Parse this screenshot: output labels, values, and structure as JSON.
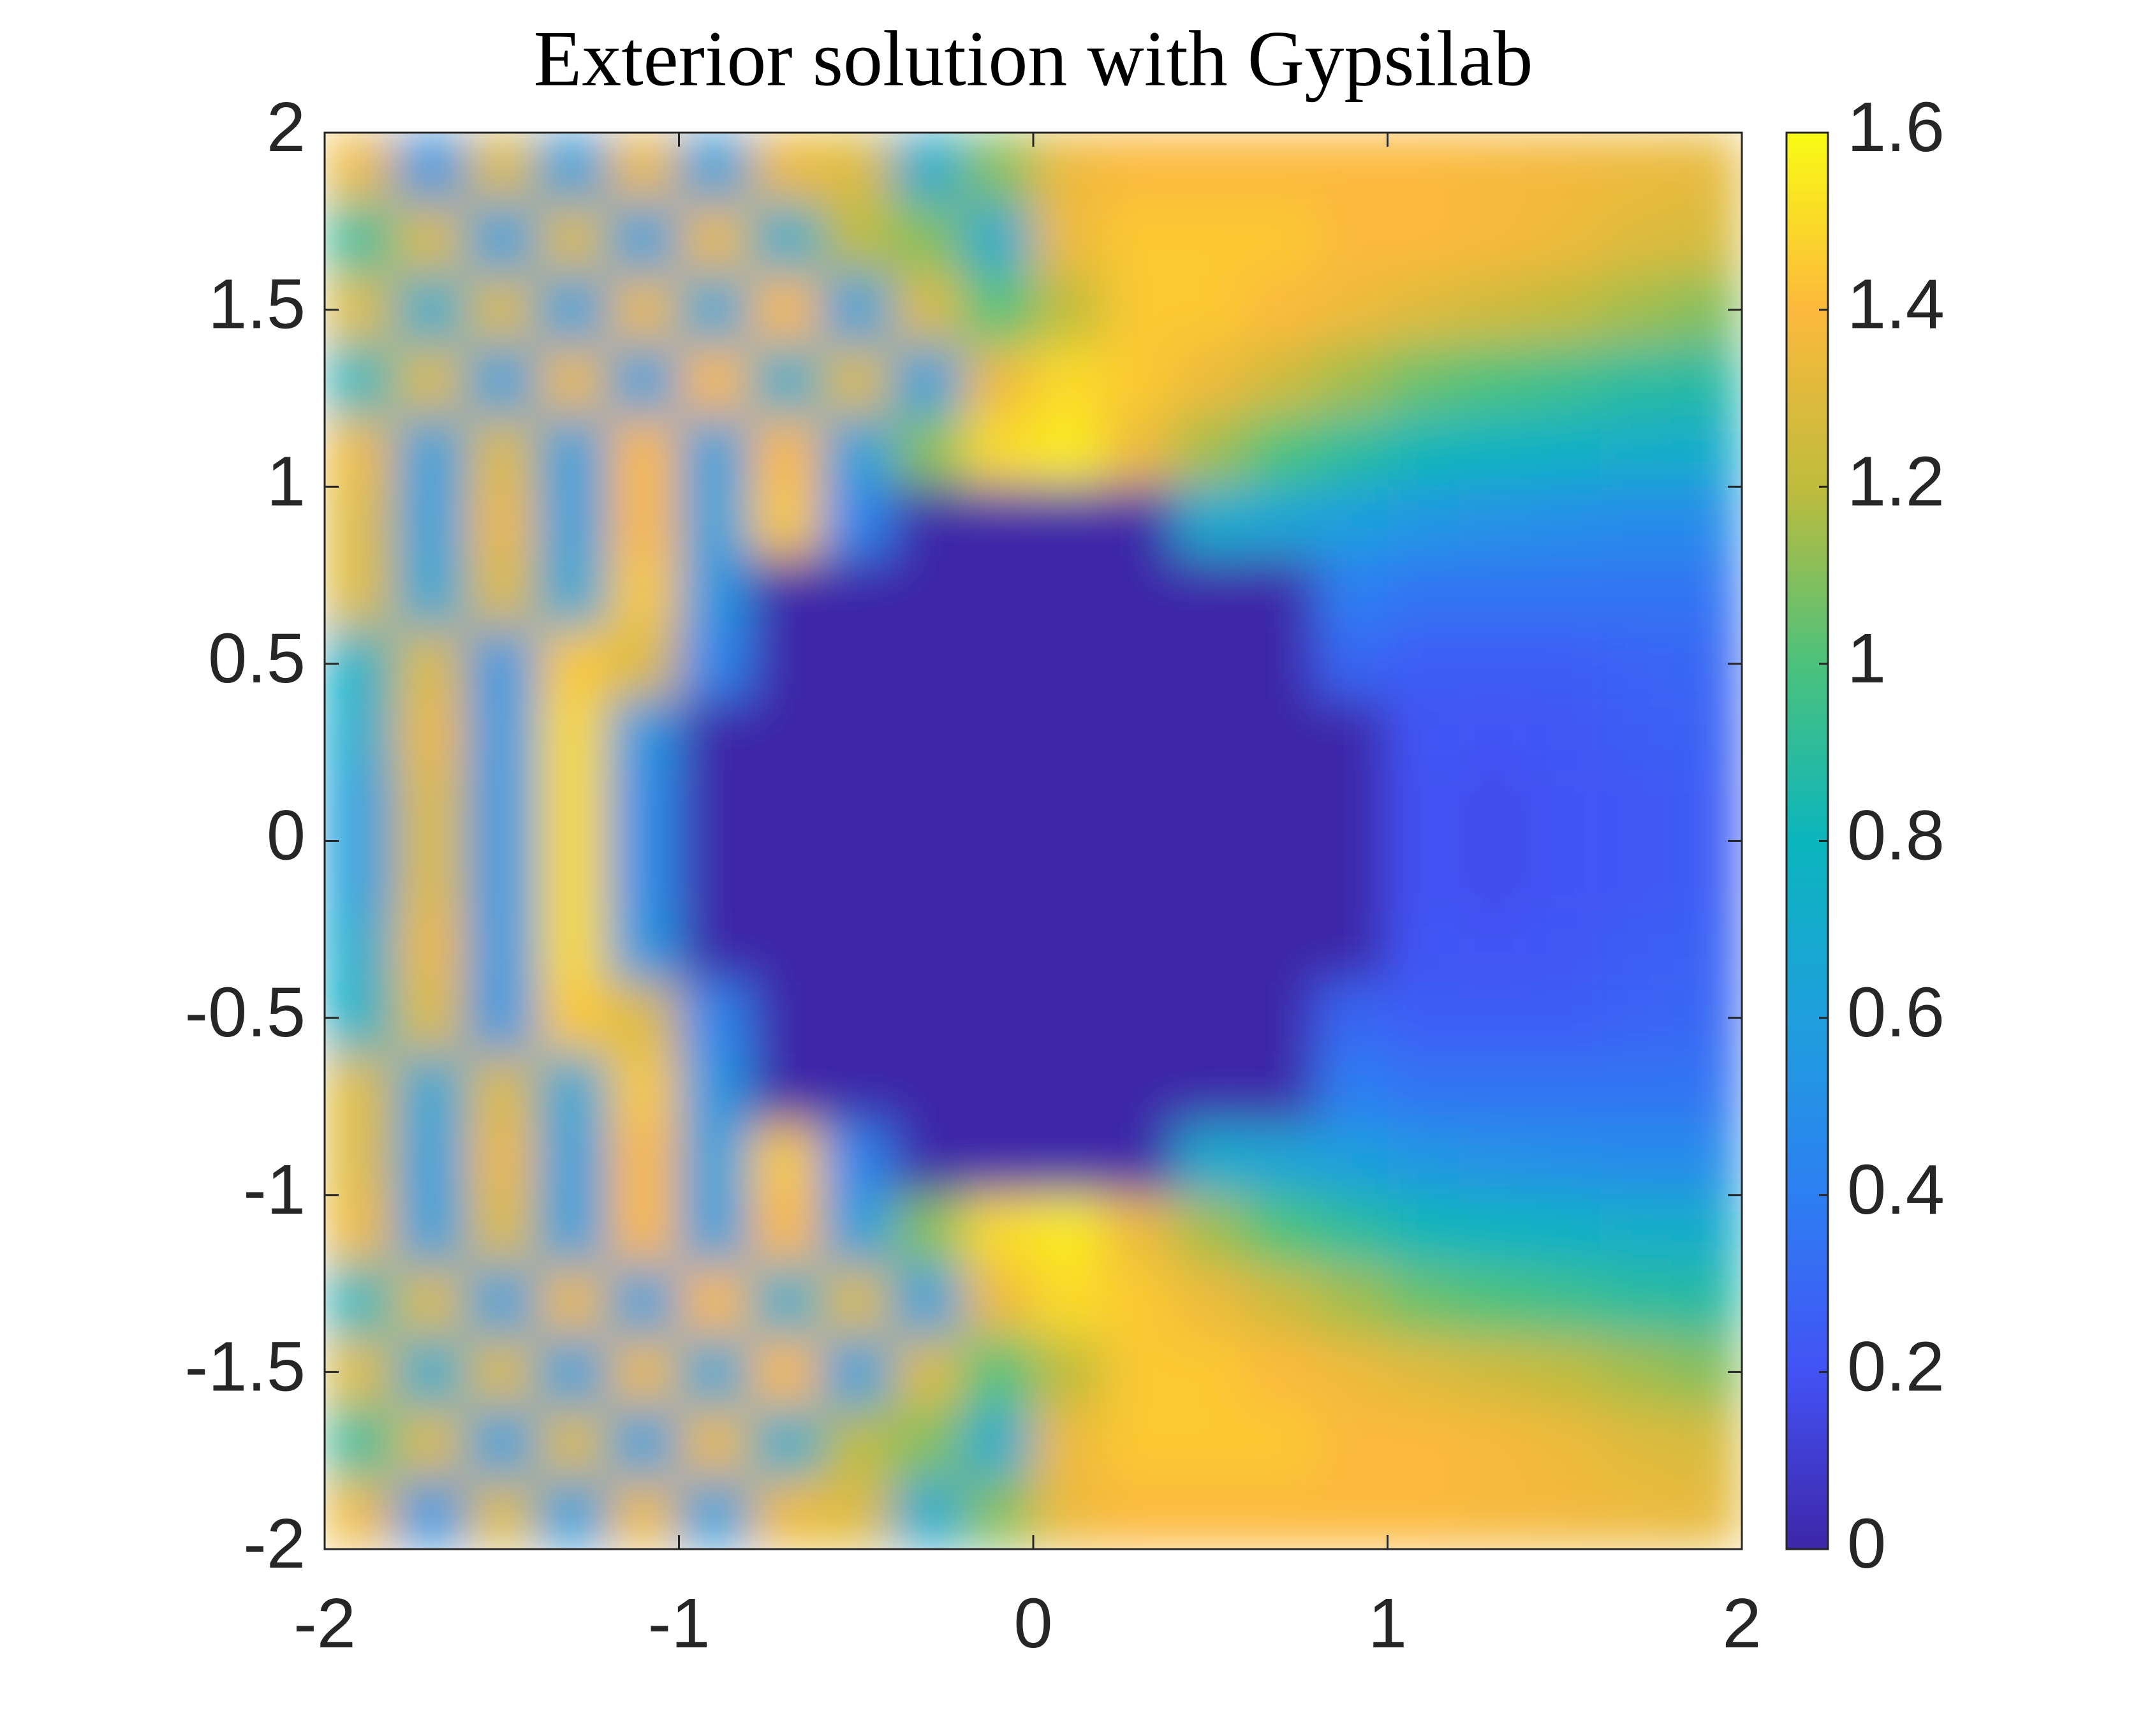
{
  "chart_data": {
    "type": "heatmap",
    "title": "Exterior solution with Gypsilab",
    "x": [
      -1.9,
      -1.7,
      -1.5,
      -1.3,
      -1.1,
      -0.9,
      -0.7,
      -0.5,
      -0.3,
      -0.1,
      0.1,
      0.3,
      0.5,
      0.7,
      0.9,
      1.1,
      1.3,
      1.5,
      1.7,
      1.9
    ],
    "y": [
      1.9,
      1.7,
      1.5,
      1.3,
      1.1,
      0.9,
      0.7,
      0.5,
      0.3,
      0.1,
      -0.1,
      -0.3,
      -0.5,
      -0.7,
      -0.9,
      -1.1,
      -1.3,
      -1.5,
      -1.7,
      -1.9
    ],
    "z": [
      [
        1.35,
        0.55,
        1.3,
        0.6,
        1.35,
        0.6,
        1.35,
        1.3,
        0.7,
        1.1,
        1.35,
        1.4,
        1.4,
        1.4,
        1.4,
        1.4,
        1.38,
        1.37,
        1.35,
        1.33
      ],
      [
        0.9,
        1.3,
        0.6,
        1.3,
        0.6,
        1.35,
        0.7,
        1.2,
        1.1,
        0.7,
        1.35,
        1.45,
        1.45,
        1.45,
        1.4,
        1.4,
        1.38,
        1.35,
        1.3,
        1.28
      ],
      [
        1.3,
        0.7,
        1.3,
        0.6,
        1.35,
        0.65,
        1.4,
        0.6,
        1.3,
        1.0,
        1.2,
        1.45,
        1.45,
        1.4,
        1.35,
        1.3,
        1.25,
        1.2,
        1.15,
        1.1
      ],
      [
        0.8,
        1.3,
        0.6,
        1.35,
        0.6,
        1.4,
        0.7,
        1.3,
        0.6,
        1.35,
        1.5,
        1.45,
        1.35,
        1.25,
        1.15,
        1.05,
        1.0,
        0.95,
        0.9,
        0.88
      ],
      [
        1.35,
        0.6,
        1.3,
        0.6,
        1.4,
        0.6,
        1.4,
        0.6,
        1.1,
        1.5,
        1.55,
        1.35,
        1.15,
        1.0,
        0.9,
        0.82,
        0.78,
        0.75,
        0.73,
        0.72
      ],
      [
        1.3,
        0.6,
        1.35,
        0.6,
        1.4,
        0.6,
        1.45,
        0.45,
        0,
        0,
        0,
        0,
        0.7,
        0.65,
        0.6,
        0.55,
        0.52,
        0.5,
        0.48,
        0.48
      ],
      [
        1.3,
        0.65,
        1.3,
        0.65,
        1.45,
        0.55,
        0,
        0,
        0,
        0,
        0,
        0,
        0,
        0,
        0.4,
        0.35,
        0.35,
        0.35,
        0.35,
        0.35
      ],
      [
        0.75,
        1.3,
        0.55,
        1.45,
        1.3,
        0.45,
        0,
        0,
        0,
        0,
        0,
        0,
        0,
        0,
        0.3,
        0.25,
        0.25,
        0.25,
        0.28,
        0.3
      ],
      [
        0.7,
        1.35,
        0.55,
        1.5,
        0.55,
        0,
        0,
        0,
        0,
        0,
        0,
        0,
        0,
        0,
        0,
        0.22,
        0.2,
        0.22,
        0.25,
        0.27
      ],
      [
        0.6,
        1.3,
        0.55,
        1.5,
        0.5,
        0,
        0,
        0,
        0,
        0,
        0,
        0,
        0,
        0,
        0,
        0.2,
        0.18,
        0.2,
        0.22,
        0.25
      ],
      [
        0.6,
        1.3,
        0.55,
        1.5,
        0.5,
        0,
        0,
        0,
        0,
        0,
        0,
        0,
        0,
        0,
        0,
        0.2,
        0.18,
        0.2,
        0.22,
        0.25
      ],
      [
        0.7,
        1.35,
        0.55,
        1.5,
        0.55,
        0,
        0,
        0,
        0,
        0,
        0,
        0,
        0,
        0,
        0,
        0.22,
        0.2,
        0.22,
        0.25,
        0.27
      ],
      [
        0.75,
        1.3,
        0.55,
        1.45,
        1.3,
        0.45,
        0,
        0,
        0,
        0,
        0,
        0,
        0,
        0,
        0.3,
        0.25,
        0.25,
        0.25,
        0.28,
        0.3
      ],
      [
        1.3,
        0.65,
        1.3,
        0.65,
        1.45,
        0.55,
        0,
        0,
        0,
        0,
        0,
        0,
        0,
        0,
        0.4,
        0.35,
        0.35,
        0.35,
        0.35,
        0.35
      ],
      [
        1.3,
        0.6,
        1.35,
        0.6,
        1.4,
        0.6,
        1.45,
        0.45,
        0,
        0,
        0,
        0,
        0.7,
        0.65,
        0.6,
        0.55,
        0.52,
        0.5,
        0.48,
        0.48
      ],
      [
        1.35,
        0.6,
        1.3,
        0.6,
        1.4,
        0.6,
        1.4,
        0.6,
        1.1,
        1.5,
        1.55,
        1.35,
        1.15,
        1.0,
        0.9,
        0.82,
        0.78,
        0.75,
        0.73,
        0.72
      ],
      [
        0.8,
        1.3,
        0.6,
        1.35,
        0.6,
        1.4,
        0.7,
        1.3,
        0.6,
        1.35,
        1.5,
        1.45,
        1.35,
        1.25,
        1.15,
        1.05,
        1.0,
        0.95,
        0.9,
        0.88
      ],
      [
        1.3,
        0.7,
        1.3,
        0.6,
        1.35,
        0.65,
        1.4,
        0.6,
        1.3,
        1.0,
        1.2,
        1.45,
        1.45,
        1.4,
        1.35,
        1.3,
        1.25,
        1.2,
        1.15,
        1.1
      ],
      [
        0.9,
        1.3,
        0.6,
        1.3,
        0.6,
        1.35,
        0.7,
        1.2,
        1.1,
        0.7,
        1.35,
        1.45,
        1.45,
        1.45,
        1.4,
        1.4,
        1.38,
        1.35,
        1.3,
        1.28
      ],
      [
        1.35,
        0.55,
        1.3,
        0.6,
        1.35,
        0.6,
        1.35,
        1.3,
        0.7,
        1.1,
        1.35,
        1.4,
        1.4,
        1.4,
        1.4,
        1.4,
        1.38,
        1.37,
        1.35,
        1.33
      ]
    ],
    "xlim": [
      -2,
      2
    ],
    "xticks": [
      -2,
      -1,
      0,
      1,
      2
    ],
    "ylim": [
      -2,
      2
    ],
    "yticks": [
      -2,
      -1.5,
      -1,
      -0.5,
      0,
      0.5,
      1,
      1.5,
      2
    ],
    "clim": [
      0,
      1.6
    ],
    "cticks": [
      0,
      0.2,
      0.4,
      0.6,
      0.8,
      1,
      1.2,
      1.4,
      1.6
    ],
    "colormap": [
      "#3e26a8",
      "#4352f5",
      "#2d7ff2",
      "#1f9fdd",
      "#0bb5bd",
      "#4cc27c",
      "#bfbc3c",
      "#fcb93c",
      "#f9fb15"
    ]
  }
}
